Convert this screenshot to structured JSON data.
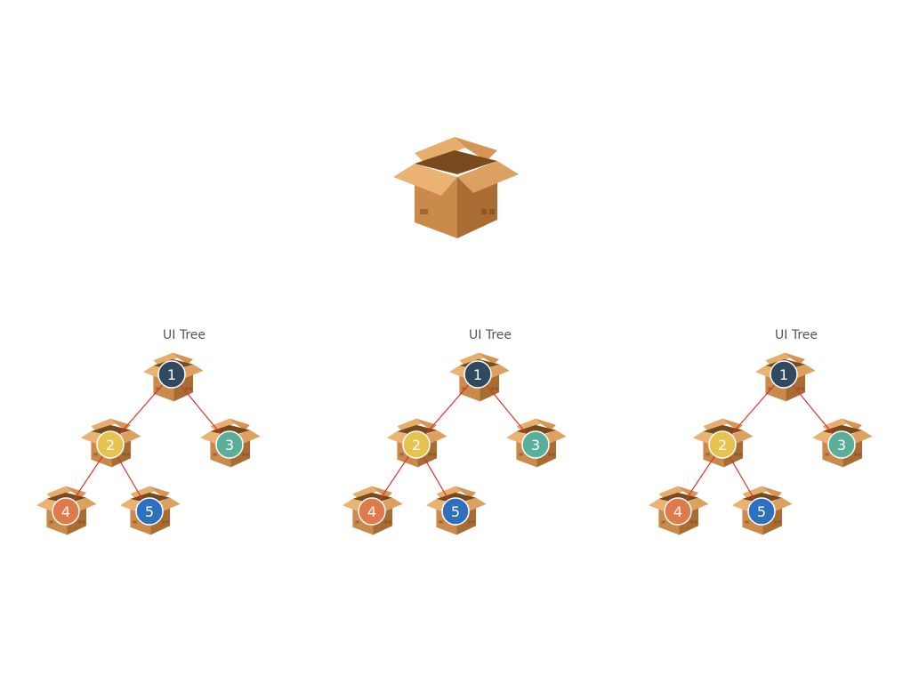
{
  "colors": {
    "edge": "#e0312a",
    "box_front": "#c98a4b",
    "box_side": "#a96c33",
    "box_inside": "#7a4a1f",
    "box_flap_light": "#e6ad6c",
    "box_flap_dark": "#d49555"
  },
  "hero_box": {
    "icon": "open-cardboard-box-icon"
  },
  "trees": [
    {
      "title": "UI Tree",
      "nodes": [
        {
          "id": "1",
          "label": "1",
          "color": "#2f4a5e"
        },
        {
          "id": "2",
          "label": "2",
          "color": "#e6c34f"
        },
        {
          "id": "3",
          "label": "3",
          "color": "#5aaf9a"
        },
        {
          "id": "4",
          "label": "4",
          "color": "#e07a4a"
        },
        {
          "id": "5",
          "label": "5",
          "color": "#2f6fc0"
        }
      ],
      "edges": [
        [
          "1",
          "2"
        ],
        [
          "1",
          "3"
        ],
        [
          "2",
          "4"
        ],
        [
          "2",
          "5"
        ]
      ]
    },
    {
      "title": "UI Tree",
      "nodes": [
        {
          "id": "1",
          "label": "1",
          "color": "#2f4a5e"
        },
        {
          "id": "2",
          "label": "2",
          "color": "#e6c34f"
        },
        {
          "id": "3",
          "label": "3",
          "color": "#5aaf9a"
        },
        {
          "id": "4",
          "label": "4",
          "color": "#e07a4a"
        },
        {
          "id": "5",
          "label": "5",
          "color": "#2f6fc0"
        }
      ],
      "edges": [
        [
          "1",
          "2"
        ],
        [
          "1",
          "3"
        ],
        [
          "2",
          "4"
        ],
        [
          "2",
          "5"
        ]
      ]
    },
    {
      "title": "UI Tree",
      "nodes": [
        {
          "id": "1",
          "label": "1",
          "color": "#2f4a5e"
        },
        {
          "id": "2",
          "label": "2",
          "color": "#e6c34f"
        },
        {
          "id": "3",
          "label": "3",
          "color": "#5aaf9a"
        },
        {
          "id": "4",
          "label": "4",
          "color": "#e07a4a"
        },
        {
          "id": "5",
          "label": "5",
          "color": "#2f6fc0"
        }
      ],
      "edges": [
        [
          "1",
          "2"
        ],
        [
          "1",
          "3"
        ],
        [
          "2",
          "4"
        ],
        [
          "2",
          "5"
        ]
      ]
    }
  ]
}
